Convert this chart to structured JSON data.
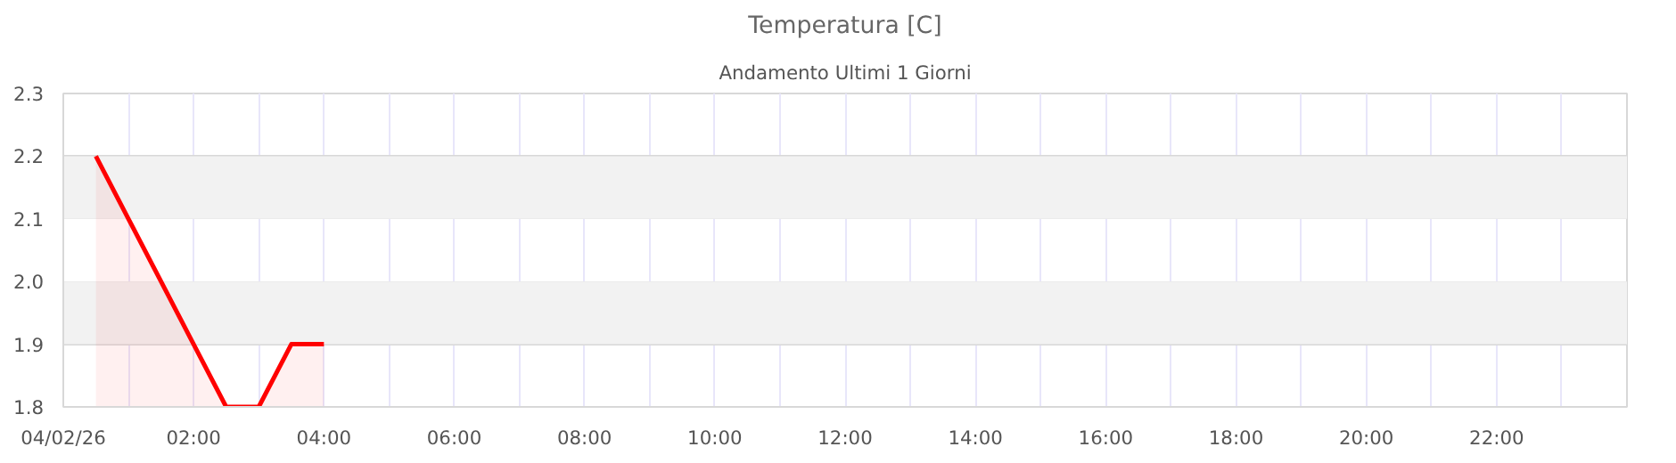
{
  "chart_data": {
    "type": "area",
    "title": "Temperatura [C]",
    "subtitle": "Andamento Ultimi 1 Giorni",
    "x": [
      0.5,
      1.0,
      1.5,
      2.0,
      2.5,
      3.0,
      3.5,
      4.0
    ],
    "series": [
      {
        "color": "#ff0000",
        "values": [
          2.2,
          2.1,
          2.0,
          1.9,
          1.8,
          1.8,
          1.9,
          1.9
        ]
      }
    ],
    "xlim": [
      0,
      24
    ],
    "xticks": [
      {
        "value": 0,
        "label": "04/02/26"
      },
      {
        "value": 1,
        "label": null
      },
      {
        "value": 2,
        "label": "02:00"
      },
      {
        "value": 3,
        "label": null
      },
      {
        "value": 4,
        "label": "04:00"
      },
      {
        "value": 5,
        "label": null
      },
      {
        "value": 6,
        "label": "06:00"
      },
      {
        "value": 7,
        "label": null
      },
      {
        "value": 8,
        "label": "08:00"
      },
      {
        "value": 9,
        "label": null
      },
      {
        "value": 10,
        "label": "10:00"
      },
      {
        "value": 11,
        "label": null
      },
      {
        "value": 12,
        "label": "12:00"
      },
      {
        "value": 13,
        "label": null
      },
      {
        "value": 14,
        "label": "14:00"
      },
      {
        "value": 15,
        "label": null
      },
      {
        "value": 16,
        "label": "16:00"
      },
      {
        "value": 17,
        "label": null
      },
      {
        "value": 18,
        "label": "18:00"
      },
      {
        "value": 19,
        "label": null
      },
      {
        "value": 20,
        "label": "20:00"
      },
      {
        "value": 21,
        "label": null
      },
      {
        "value": 22,
        "label": "22:00"
      },
      {
        "value": 23,
        "label": null
      }
    ],
    "ylim": [
      1.8,
      2.3
    ],
    "yticks": [
      {
        "value": 1.8,
        "label": "1.8"
      },
      {
        "value": 1.9,
        "label": "1.9"
      },
      {
        "value": 2.0,
        "label": "2.0"
      },
      {
        "value": 2.1,
        "label": "2.1"
      },
      {
        "value": 2.2,
        "label": "2.2"
      },
      {
        "value": 2.3,
        "label": "2.3"
      }
    ],
    "bands": [
      {
        "axis": "y",
        "from": 1.9,
        "to": 2.0,
        "color": "#f2f2f2"
      },
      {
        "axis": "y",
        "from": 2.1,
        "to": 2.2,
        "color": "#f2f2f2"
      }
    ],
    "grid": true
  }
}
